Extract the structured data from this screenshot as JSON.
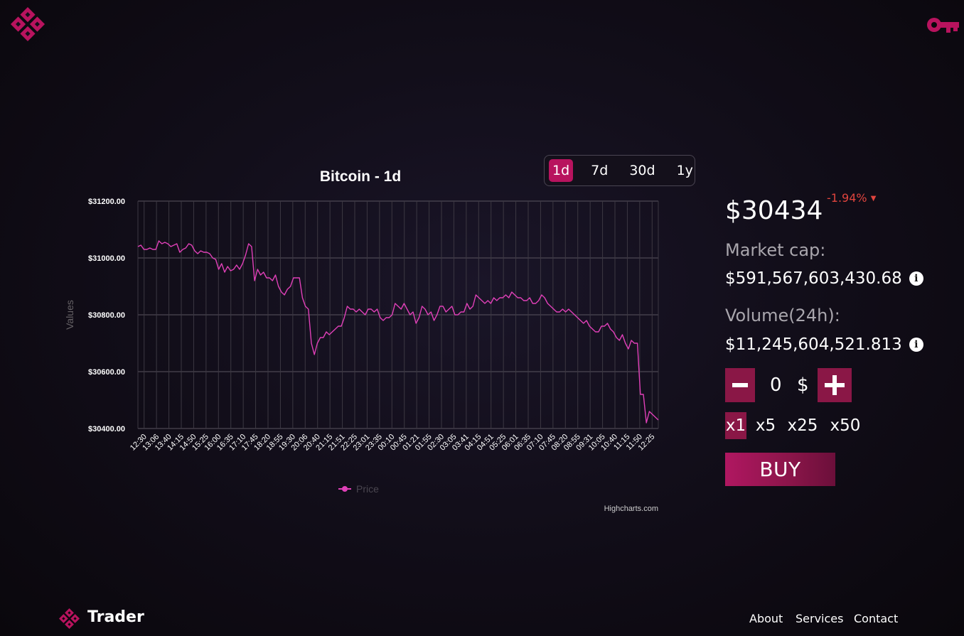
{
  "brand": {
    "name": "Trader",
    "accent": "#b8135e",
    "accent_dark": "#8a1746"
  },
  "header": {
    "logo_icon": "diamond-logo-icon",
    "key_icon": "key-icon"
  },
  "chart_controls": {
    "ranges": [
      "1d",
      "7d",
      "30d",
      "1y"
    ],
    "active": "1d"
  },
  "market": {
    "price": "$30434",
    "change": "-1.94%",
    "change_color": "#e0443e",
    "market_cap_label": "Market cap:",
    "market_cap_value": "$591,567,603,430.68",
    "volume_label": "Volume(24h):",
    "volume_value": "$11,245,604,521.813",
    "info_icon_glyph": "i"
  },
  "trade": {
    "amount": "0",
    "currency": "$",
    "multipliers": [
      "x1",
      "x5",
      "x25",
      "x50"
    ],
    "active_multiplier": "x1",
    "buy_label": "BUY"
  },
  "footer": {
    "brand": "Trader",
    "links": [
      "About",
      "Services",
      "Contact"
    ]
  },
  "chart_data": {
    "type": "line",
    "title": "Bitcoin - 1d",
    "ylabel": "Values",
    "ylim": [
      30400,
      31200
    ],
    "y_ticks": [
      "$31200.00",
      "$31000.00",
      "$30800.00",
      "$30600.00",
      "$30400.00"
    ],
    "y_tick_values": [
      31200,
      31000,
      30800,
      30600,
      30400
    ],
    "x_ticks": [
      "12:30",
      "13:06",
      "13:40",
      "14:15",
      "14:50",
      "15:25",
      "16:00",
      "16:35",
      "17:10",
      "17:45",
      "18:20",
      "18:55",
      "19:30",
      "20:06",
      "20:40",
      "21:15",
      "21:51",
      "22:25",
      "23:01",
      "23:35",
      "00:10",
      "00:45",
      "01:21",
      "01:55",
      "02:30",
      "03:05",
      "03:41",
      "04:15",
      "04:51",
      "05:25",
      "06:01",
      "06:35",
      "07:10",
      "07:45",
      "08:20",
      "08:55",
      "09:31",
      "10:05",
      "10:40",
      "11:15",
      "11:50",
      "12:25"
    ],
    "legend": [
      "Price"
    ],
    "legend_position": "bottom",
    "grid": true,
    "credits": "Highcharts.com",
    "line_color": "#e040b8",
    "series": [
      {
        "name": "Price",
        "values": [
          31040,
          31045,
          31030,
          31030,
          31035,
          31030,
          31030,
          31060,
          31050,
          31055,
          31050,
          31040,
          31045,
          31050,
          31020,
          31030,
          31035,
          31050,
          31045,
          31025,
          31015,
          31025,
          31020,
          31020,
          31015,
          31000,
          30995,
          30960,
          30980,
          30950,
          30970,
          30955,
          30960,
          30975,
          30960,
          30980,
          31010,
          31050,
          31040,
          30920,
          30960,
          30940,
          30950,
          30930,
          30930,
          30920,
          30940,
          30900,
          30880,
          30870,
          30890,
          30900,
          30930,
          30930,
          30930,
          30860,
          30830,
          30820,
          30700,
          30660,
          30700,
          30720,
          30720,
          30740,
          30730,
          30740,
          30750,
          30760,
          30760,
          30790,
          30830,
          30820,
          30820,
          30810,
          30820,
          30810,
          30800,
          30820,
          30820,
          30810,
          30820,
          30790,
          30780,
          30790,
          30790,
          30800,
          30840,
          30830,
          30820,
          30840,
          30820,
          30800,
          30810,
          30770,
          30790,
          30830,
          30820,
          30800,
          30810,
          30780,
          30800,
          30830,
          30830,
          30810,
          30820,
          30830,
          30800,
          30800,
          30810,
          30810,
          30840,
          30820,
          30830,
          30870,
          30860,
          30850,
          30840,
          30850,
          30840,
          30860,
          30850,
          30860,
          30860,
          30870,
          30860,
          30880,
          30870,
          30860,
          30860,
          30850,
          30850,
          30860,
          30840,
          30840,
          30850,
          30870,
          30860,
          30840,
          30830,
          30820,
          30810,
          30810,
          30820,
          30810,
          30820,
          30810,
          30800,
          30790,
          30780,
          30770,
          30780,
          30760,
          30750,
          30740,
          30740,
          30760,
          30760,
          30770,
          30750,
          30740,
          30720,
          30710,
          30730,
          30700,
          30680,
          30710,
          30700,
          30700,
          30520,
          30520,
          30420,
          30460,
          30450,
          30440,
          30430
        ]
      }
    ]
  }
}
